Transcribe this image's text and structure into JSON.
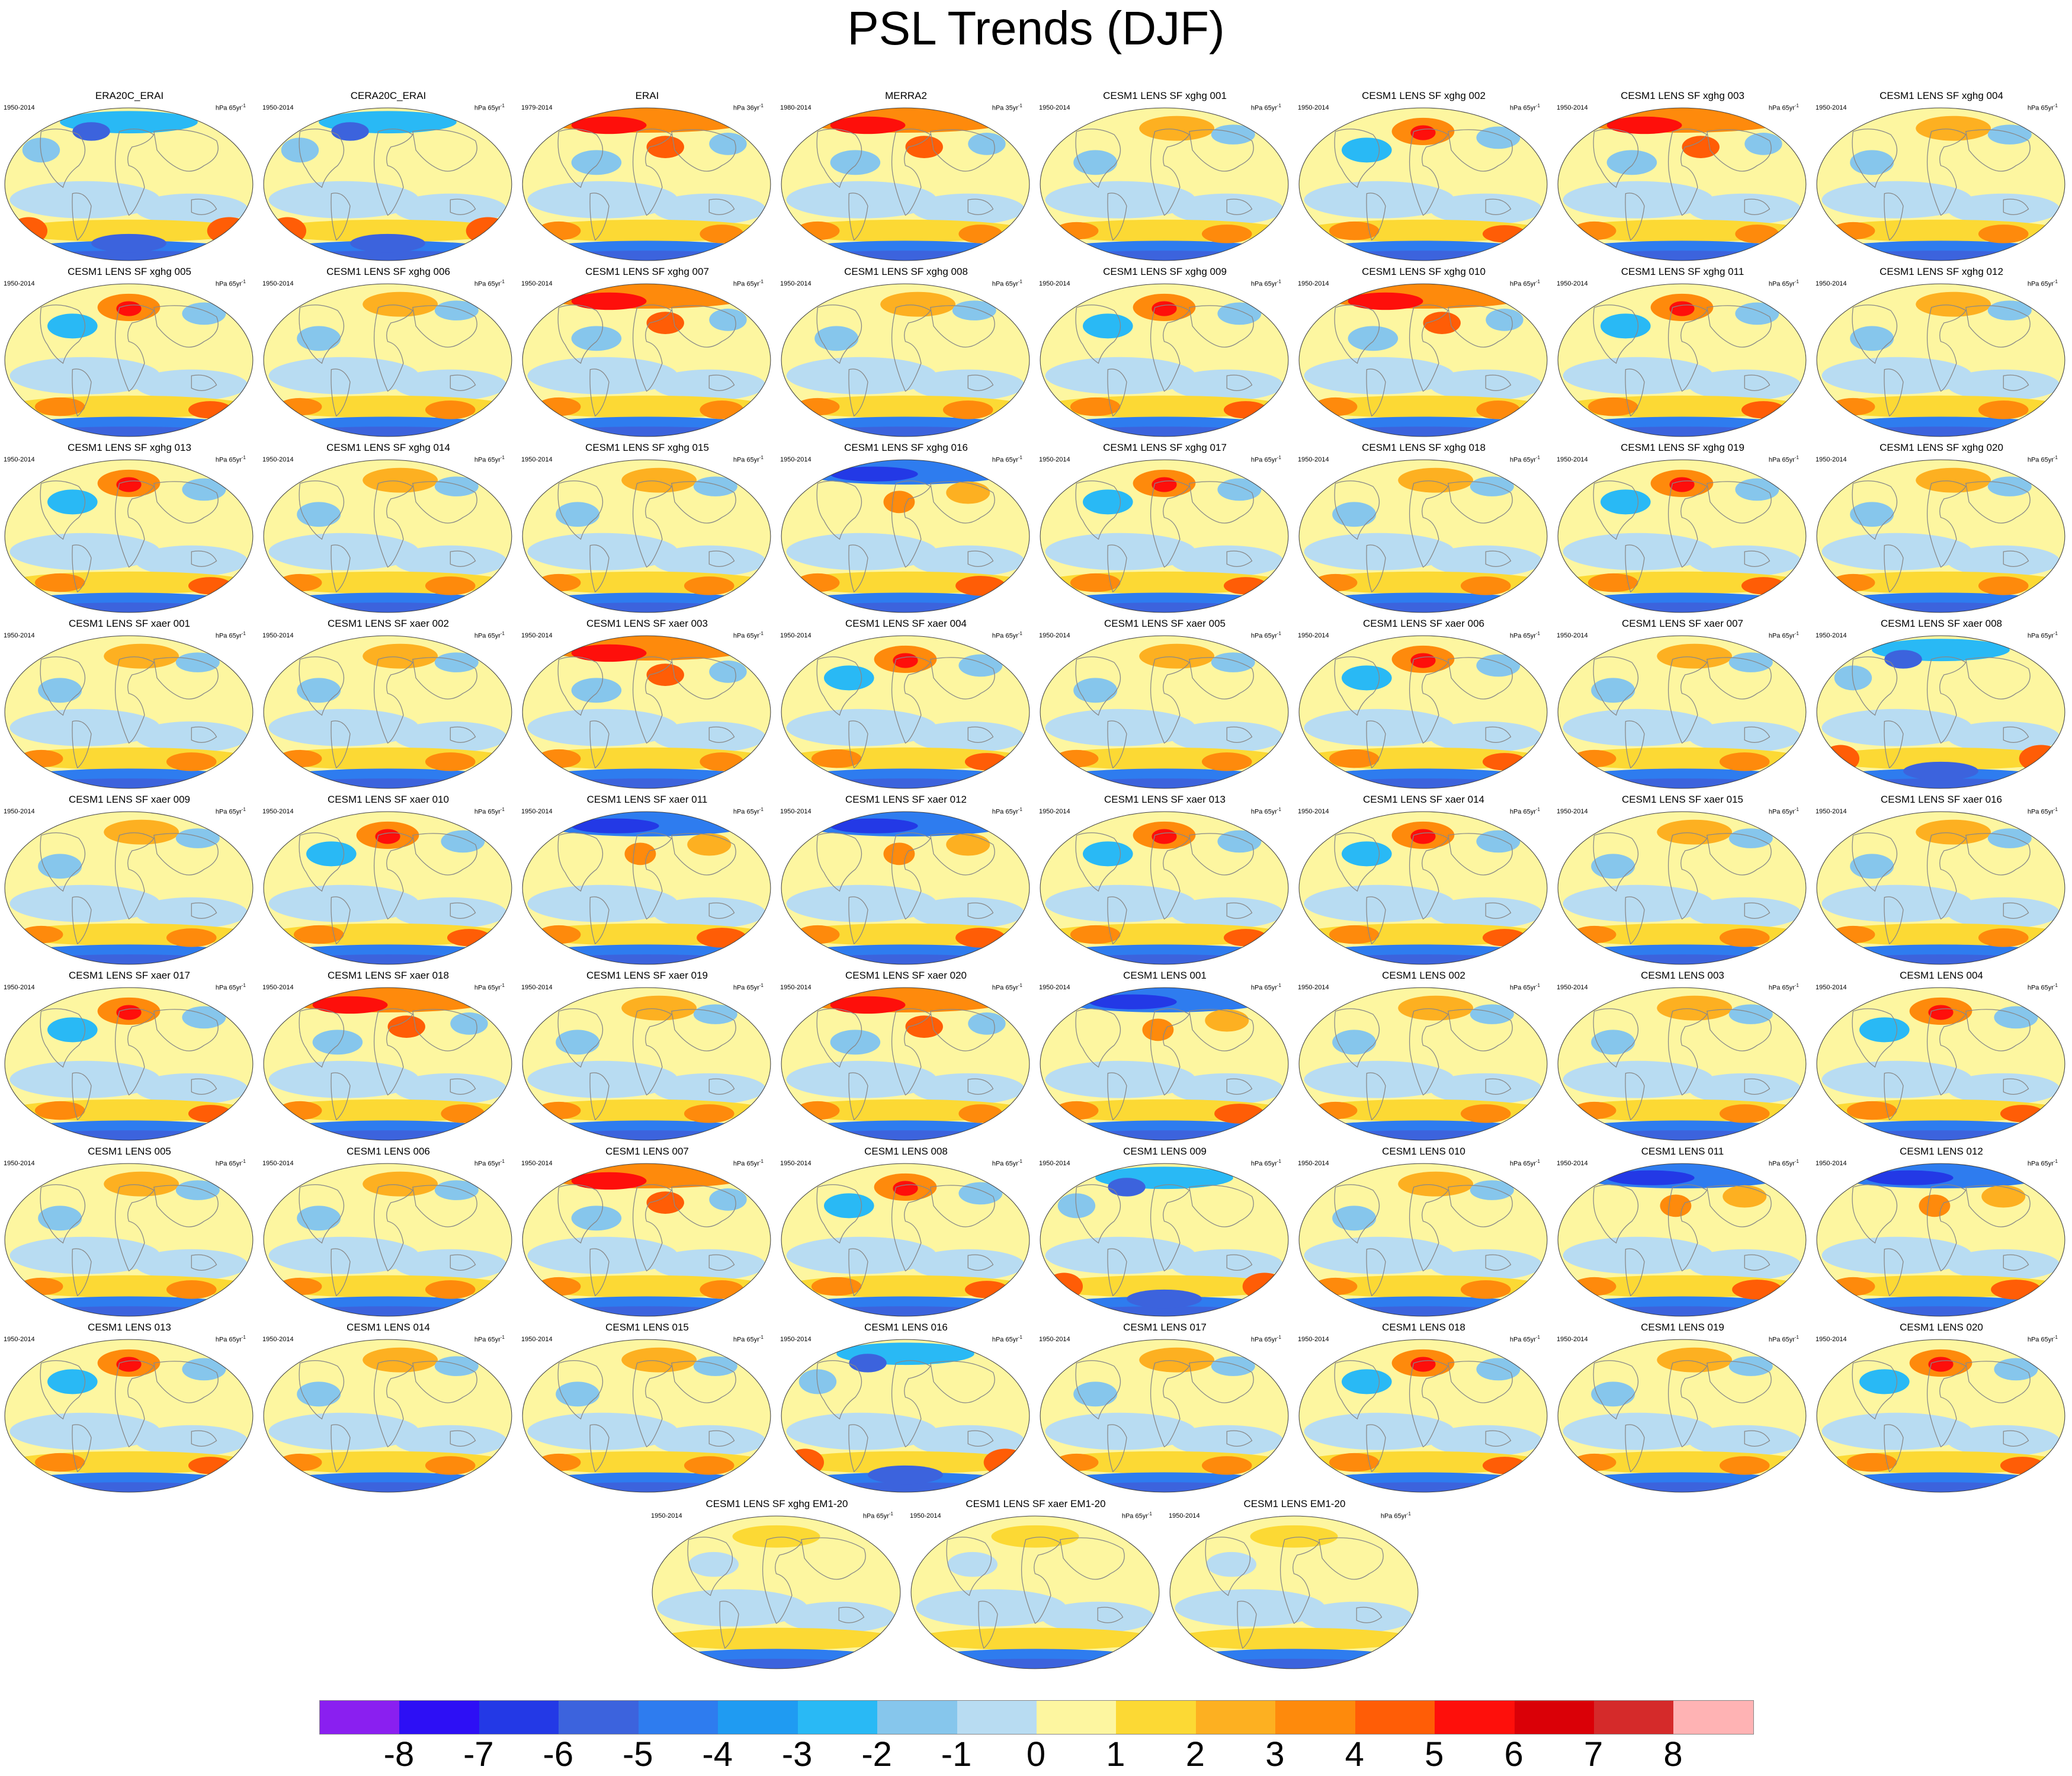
{
  "title": "PSL Trends (DJF)",
  "colorbar": {
    "labels": [
      "-8",
      "-7",
      "-6",
      "-5",
      "-4",
      "-3",
      "-2",
      "-1",
      "0",
      "1",
      "2",
      "3",
      "4",
      "5",
      "6",
      "7",
      "8"
    ],
    "colors": [
      "#8a1ff0",
      "#2d0ff5",
      "#2339e6",
      "#3c63dd",
      "#2e7cef",
      "#1f9bf2",
      "#29b9f5",
      "#86c6ec",
      "#b8dcf2",
      "#fdf6a0",
      "#fcd934",
      "#fdb021",
      "#fe8a0c",
      "#ff5d06",
      "#fe0f0b",
      "#da0007",
      "#d52a2a",
      "#ffb3b4"
    ]
  },
  "panels": [
    {
      "name": "ERA20C_ERAI",
      "years": "1950-2014",
      "units": "hPa 65yr",
      "sup": "-1",
      "pattern": "obs"
    },
    {
      "name": "CERA20C_ERAI",
      "years": "1950-2014",
      "units": "hPa 65yr",
      "sup": "-1",
      "pattern": "obs"
    },
    {
      "name": "ERAI",
      "years": "1979-2014",
      "units": "hPa 36yr",
      "sup": "-1",
      "pattern": "warm"
    },
    {
      "name": "MERRA2",
      "years": "1980-2014",
      "units": "hPa 35yr",
      "sup": "-1",
      "pattern": "warm"
    },
    {
      "name": "CESM1 LENS SF xghg 001",
      "years": "1950-2014",
      "units": "hPa 65yr",
      "sup": "-1",
      "pattern": "a"
    },
    {
      "name": "CESM1 LENS SF xghg 002",
      "years": "1950-2014",
      "units": "hPa 65yr",
      "sup": "-1",
      "pattern": "b"
    },
    {
      "name": "CESM1 LENS SF xghg 003",
      "years": "1950-2014",
      "units": "hPa 65yr",
      "sup": "-1",
      "pattern": "warm"
    },
    {
      "name": "CESM1 LENS SF xghg 004",
      "years": "1950-2014",
      "units": "hPa 65yr",
      "sup": "-1",
      "pattern": "a"
    },
    {
      "name": "CESM1 LENS SF xghg 005",
      "years": "1950-2014",
      "units": "hPa 65yr",
      "sup": "-1",
      "pattern": "b"
    },
    {
      "name": "CESM1 LENS SF xghg 006",
      "years": "1950-2014",
      "units": "hPa 65yr",
      "sup": "-1",
      "pattern": "a"
    },
    {
      "name": "CESM1 LENS SF xghg 007",
      "years": "1950-2014",
      "units": "hPa 65yr",
      "sup": "-1",
      "pattern": "warm"
    },
    {
      "name": "CESM1 LENS SF xghg 008",
      "years": "1950-2014",
      "units": "hPa 65yr",
      "sup": "-1",
      "pattern": "a"
    },
    {
      "name": "CESM1 LENS SF xghg 009",
      "years": "1950-2014",
      "units": "hPa 65yr",
      "sup": "-1",
      "pattern": "b"
    },
    {
      "name": "CESM1 LENS SF xghg 010",
      "years": "1950-2014",
      "units": "hPa 65yr",
      "sup": "-1",
      "pattern": "warm"
    },
    {
      "name": "CESM1 LENS SF xghg 011",
      "years": "1950-2014",
      "units": "hPa 65yr",
      "sup": "-1",
      "pattern": "b"
    },
    {
      "name": "CESM1 LENS SF xghg 012",
      "years": "1950-2014",
      "units": "hPa 65yr",
      "sup": "-1",
      "pattern": "a"
    },
    {
      "name": "CESM1 LENS SF xghg 013",
      "years": "1950-2014",
      "units": "hPa 65yr",
      "sup": "-1",
      "pattern": "b"
    },
    {
      "name": "CESM1 LENS SF xghg 014",
      "years": "1950-2014",
      "units": "hPa 65yr",
      "sup": "-1",
      "pattern": "a"
    },
    {
      "name": "CESM1 LENS SF xghg 015",
      "years": "1950-2014",
      "units": "hPa 65yr",
      "sup": "-1",
      "pattern": "a"
    },
    {
      "name": "CESM1 LENS SF xghg 016",
      "years": "1950-2014",
      "units": "hPa 65yr",
      "sup": "-1",
      "pattern": "cold"
    },
    {
      "name": "CESM1 LENS SF xghg 017",
      "years": "1950-2014",
      "units": "hPa 65yr",
      "sup": "-1",
      "pattern": "b"
    },
    {
      "name": "CESM1 LENS SF xghg 018",
      "years": "1950-2014",
      "units": "hPa 65yr",
      "sup": "-1",
      "pattern": "a"
    },
    {
      "name": "CESM1 LENS SF xghg 019",
      "years": "1950-2014",
      "units": "hPa 65yr",
      "sup": "-1",
      "pattern": "b"
    },
    {
      "name": "CESM1 LENS SF xghg 020",
      "years": "1950-2014",
      "units": "hPa 65yr",
      "sup": "-1",
      "pattern": "a"
    },
    {
      "name": "CESM1 LENS SF xaer 001",
      "years": "1950-2014",
      "units": "hPa 65yr",
      "sup": "-1",
      "pattern": "a"
    },
    {
      "name": "CESM1 LENS SF xaer 002",
      "years": "1950-2014",
      "units": "hPa 65yr",
      "sup": "-1",
      "pattern": "a"
    },
    {
      "name": "CESM1 LENS SF xaer 003",
      "years": "1950-2014",
      "units": "hPa 65yr",
      "sup": "-1",
      "pattern": "warm"
    },
    {
      "name": "CESM1 LENS SF xaer 004",
      "years": "1950-2014",
      "units": "hPa 65yr",
      "sup": "-1",
      "pattern": "b"
    },
    {
      "name": "CESM1 LENS SF xaer 005",
      "years": "1950-2014",
      "units": "hPa 65yr",
      "sup": "-1",
      "pattern": "a"
    },
    {
      "name": "CESM1 LENS SF xaer 006",
      "years": "1950-2014",
      "units": "hPa 65yr",
      "sup": "-1",
      "pattern": "b"
    },
    {
      "name": "CESM1 LENS SF xaer 007",
      "years": "1950-2014",
      "units": "hPa 65yr",
      "sup": "-1",
      "pattern": "a"
    },
    {
      "name": "CESM1 LENS SF xaer 008",
      "years": "1950-2014",
      "units": "hPa 65yr",
      "sup": "-1",
      "pattern": "obs"
    },
    {
      "name": "CESM1 LENS SF xaer 009",
      "years": "1950-2014",
      "units": "hPa 65yr",
      "sup": "-1",
      "pattern": "a"
    },
    {
      "name": "CESM1 LENS SF xaer 010",
      "years": "1950-2014",
      "units": "hPa 65yr",
      "sup": "-1",
      "pattern": "b"
    },
    {
      "name": "CESM1 LENS SF xaer 011",
      "years": "1950-2014",
      "units": "hPa 65yr",
      "sup": "-1",
      "pattern": "cold"
    },
    {
      "name": "CESM1 LENS SF xaer 012",
      "years": "1950-2014",
      "units": "hPa 65yr",
      "sup": "-1",
      "pattern": "cold"
    },
    {
      "name": "CESM1 LENS SF xaer 013",
      "years": "1950-2014",
      "units": "hPa 65yr",
      "sup": "-1",
      "pattern": "b"
    },
    {
      "name": "CESM1 LENS SF xaer 014",
      "years": "1950-2014",
      "units": "hPa 65yr",
      "sup": "-1",
      "pattern": "b"
    },
    {
      "name": "CESM1 LENS SF xaer 015",
      "years": "1950-2014",
      "units": "hPa 65yr",
      "sup": "-1",
      "pattern": "a"
    },
    {
      "name": "CESM1 LENS SF xaer 016",
      "years": "1950-2014",
      "units": "hPa 65yr",
      "sup": "-1",
      "pattern": "a"
    },
    {
      "name": "CESM1 LENS SF xaer 017",
      "years": "1950-2014",
      "units": "hPa 65yr",
      "sup": "-1",
      "pattern": "b"
    },
    {
      "name": "CESM1 LENS SF xaer 018",
      "years": "1950-2014",
      "units": "hPa 65yr",
      "sup": "-1",
      "pattern": "warm"
    },
    {
      "name": "CESM1 LENS SF xaer 019",
      "years": "1950-2014",
      "units": "hPa 65yr",
      "sup": "-1",
      "pattern": "a"
    },
    {
      "name": "CESM1 LENS SF xaer 020",
      "years": "1950-2014",
      "units": "hPa 65yr",
      "sup": "-1",
      "pattern": "warm"
    },
    {
      "name": "CESM1 LENS 001",
      "years": "1950-2014",
      "units": "hPa 65yr",
      "sup": "-1",
      "pattern": "cold"
    },
    {
      "name": "CESM1 LENS 002",
      "years": "1950-2014",
      "units": "hPa 65yr",
      "sup": "-1",
      "pattern": "a"
    },
    {
      "name": "CESM1 LENS 003",
      "years": "1950-2014",
      "units": "hPa 65yr",
      "sup": "-1",
      "pattern": "a"
    },
    {
      "name": "CESM1 LENS 004",
      "years": "1950-2014",
      "units": "hPa 65yr",
      "sup": "-1",
      "pattern": "b"
    },
    {
      "name": "CESM1 LENS 005",
      "years": "1950-2014",
      "units": "hPa 65yr",
      "sup": "-1",
      "pattern": "a"
    },
    {
      "name": "CESM1 LENS 006",
      "years": "1950-2014",
      "units": "hPa 65yr",
      "sup": "-1",
      "pattern": "a"
    },
    {
      "name": "CESM1 LENS 007",
      "years": "1950-2014",
      "units": "hPa 65yr",
      "sup": "-1",
      "pattern": "warm"
    },
    {
      "name": "CESM1 LENS 008",
      "years": "1950-2014",
      "units": "hPa 65yr",
      "sup": "-1",
      "pattern": "b"
    },
    {
      "name": "CESM1 LENS 009",
      "years": "1950-2014",
      "units": "hPa 65yr",
      "sup": "-1",
      "pattern": "obs"
    },
    {
      "name": "CESM1 LENS 010",
      "years": "1950-2014",
      "units": "hPa 65yr",
      "sup": "-1",
      "pattern": "a"
    },
    {
      "name": "CESM1 LENS 011",
      "years": "1950-2014",
      "units": "hPa 65yr",
      "sup": "-1",
      "pattern": "cold"
    },
    {
      "name": "CESM1 LENS 012",
      "years": "1950-2014",
      "units": "hPa 65yr",
      "sup": "-1",
      "pattern": "cold"
    },
    {
      "name": "CESM1 LENS 013",
      "years": "1950-2014",
      "units": "hPa 65yr",
      "sup": "-1",
      "pattern": "b"
    },
    {
      "name": "CESM1 LENS 014",
      "years": "1950-2014",
      "units": "hPa 65yr",
      "sup": "-1",
      "pattern": "a"
    },
    {
      "name": "CESM1 LENS 015",
      "years": "1950-2014",
      "units": "hPa 65yr",
      "sup": "-1",
      "pattern": "a"
    },
    {
      "name": "CESM1 LENS 016",
      "years": "1950-2014",
      "units": "hPa 65yr",
      "sup": "-1",
      "pattern": "obs"
    },
    {
      "name": "CESM1 LENS 017",
      "years": "1950-2014",
      "units": "hPa 65yr",
      "sup": "-1",
      "pattern": "a"
    },
    {
      "name": "CESM1 LENS 018",
      "years": "1950-2014",
      "units": "hPa 65yr",
      "sup": "-1",
      "pattern": "b"
    },
    {
      "name": "CESM1 LENS 019",
      "years": "1950-2014",
      "units": "hPa 65yr",
      "sup": "-1",
      "pattern": "a"
    },
    {
      "name": "CESM1 LENS 020",
      "years": "1950-2014",
      "units": "hPa 65yr",
      "sup": "-1",
      "pattern": "b"
    },
    {
      "name": "CESM1 LENS SF xghg EM1-20",
      "years": "1950-2014",
      "units": "hPa 65yr",
      "sup": "-1",
      "pattern": "mean"
    },
    {
      "name": "CESM1 LENS SF xaer EM1-20",
      "years": "1950-2014",
      "units": "hPa 65yr",
      "sup": "-1",
      "pattern": "mean"
    },
    {
      "name": "CESM1 LENS EM1-20",
      "years": "1950-2014",
      "units": "hPa 65yr",
      "sup": "-1",
      "pattern": "mean"
    }
  ]
}
